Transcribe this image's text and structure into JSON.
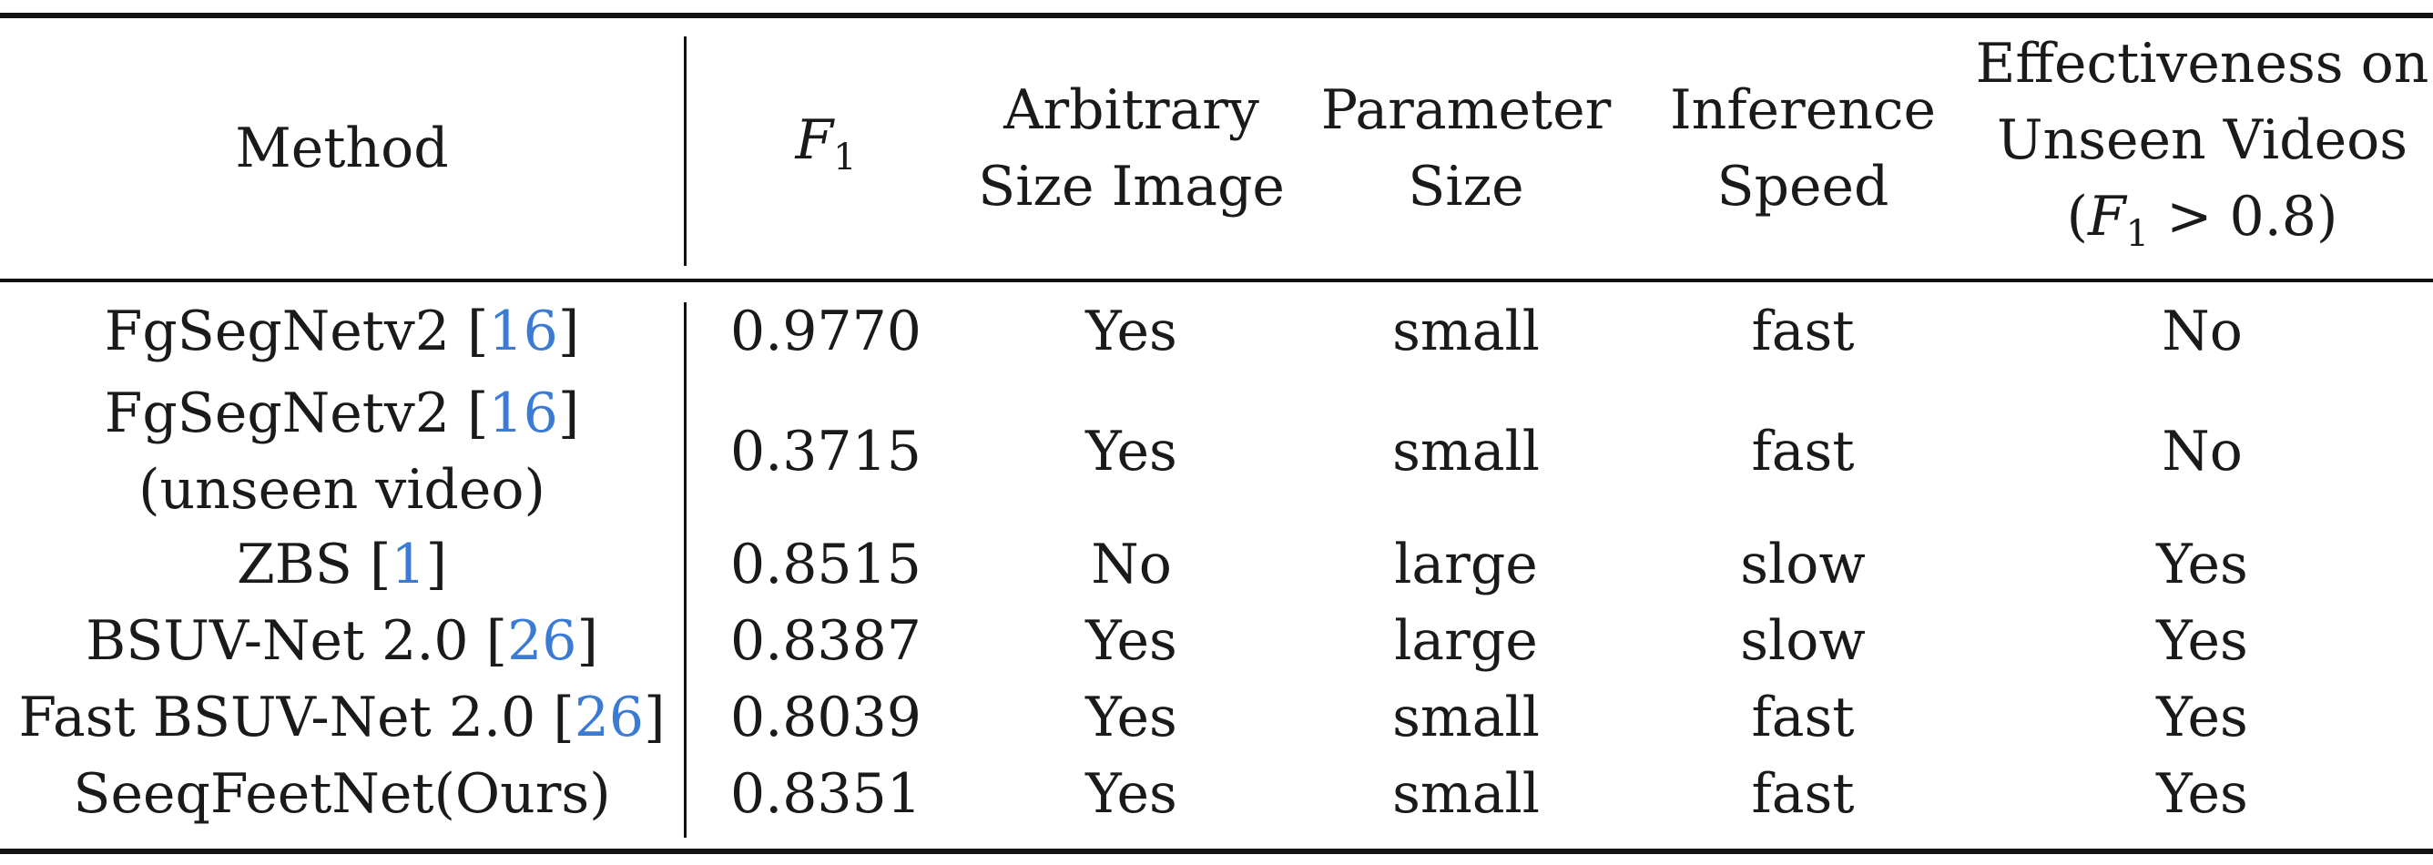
{
  "header": {
    "method": "Method",
    "f1_symbol": "F",
    "f1_sub": "1",
    "arbitrary_line1": "Arbitrary",
    "arbitrary_line2": "Size Image",
    "param_line1": "Parameter",
    "param_line2": "Size",
    "speed_line1": "Inference",
    "speed_line2": "Speed",
    "eff_line1": "Effectiveness on",
    "eff_line2": "Unseen Videos",
    "eff_line3_open": "(",
    "eff_line3_sym": "F",
    "eff_line3_sub": "1",
    "eff_line3_rest": " > 0.8)"
  },
  "rows": [
    {
      "method_name": "FgSegNetv2 [",
      "method_ref": "16",
      "method_close": "]",
      "method_line2": "",
      "f1": "0.9770",
      "arbitrary": "Yes",
      "param": "small",
      "speed": "fast",
      "effective": "No"
    },
    {
      "method_name": "FgSegNetv2 [",
      "method_ref": "16",
      "method_close": "]",
      "method_line2": "(unseen video)",
      "f1": "0.3715",
      "arbitrary": "Yes",
      "param": "small",
      "speed": "fast",
      "effective": "No"
    },
    {
      "method_name": "ZBS [",
      "method_ref": "1",
      "method_close": "]",
      "method_line2": "",
      "f1": "0.8515",
      "arbitrary": "No",
      "param": "large",
      "speed": "slow",
      "effective": "Yes"
    },
    {
      "method_name": "BSUV-Net 2.0 [",
      "method_ref": "26",
      "method_close": "]",
      "method_line2": "",
      "f1": "0.8387",
      "arbitrary": "Yes",
      "param": "large",
      "speed": "slow",
      "effective": "Yes"
    },
    {
      "method_name": "Fast BSUV-Net 2.0 [",
      "method_ref": "26",
      "method_close": "]",
      "method_line2": "",
      "f1": "0.8039",
      "arbitrary": "Yes",
      "param": "small",
      "speed": "fast",
      "effective": "Yes"
    },
    {
      "method_name": "SeeqFeetNet(Ours)",
      "method_ref": "",
      "method_close": "",
      "method_line2": "",
      "f1": "0.8351",
      "arbitrary": "Yes",
      "param": "small",
      "speed": "fast",
      "effective": "Yes"
    }
  ],
  "colors": {
    "ref_link": "#3b7bd4",
    "text": "#1a1a1a",
    "rule": "#111111"
  }
}
